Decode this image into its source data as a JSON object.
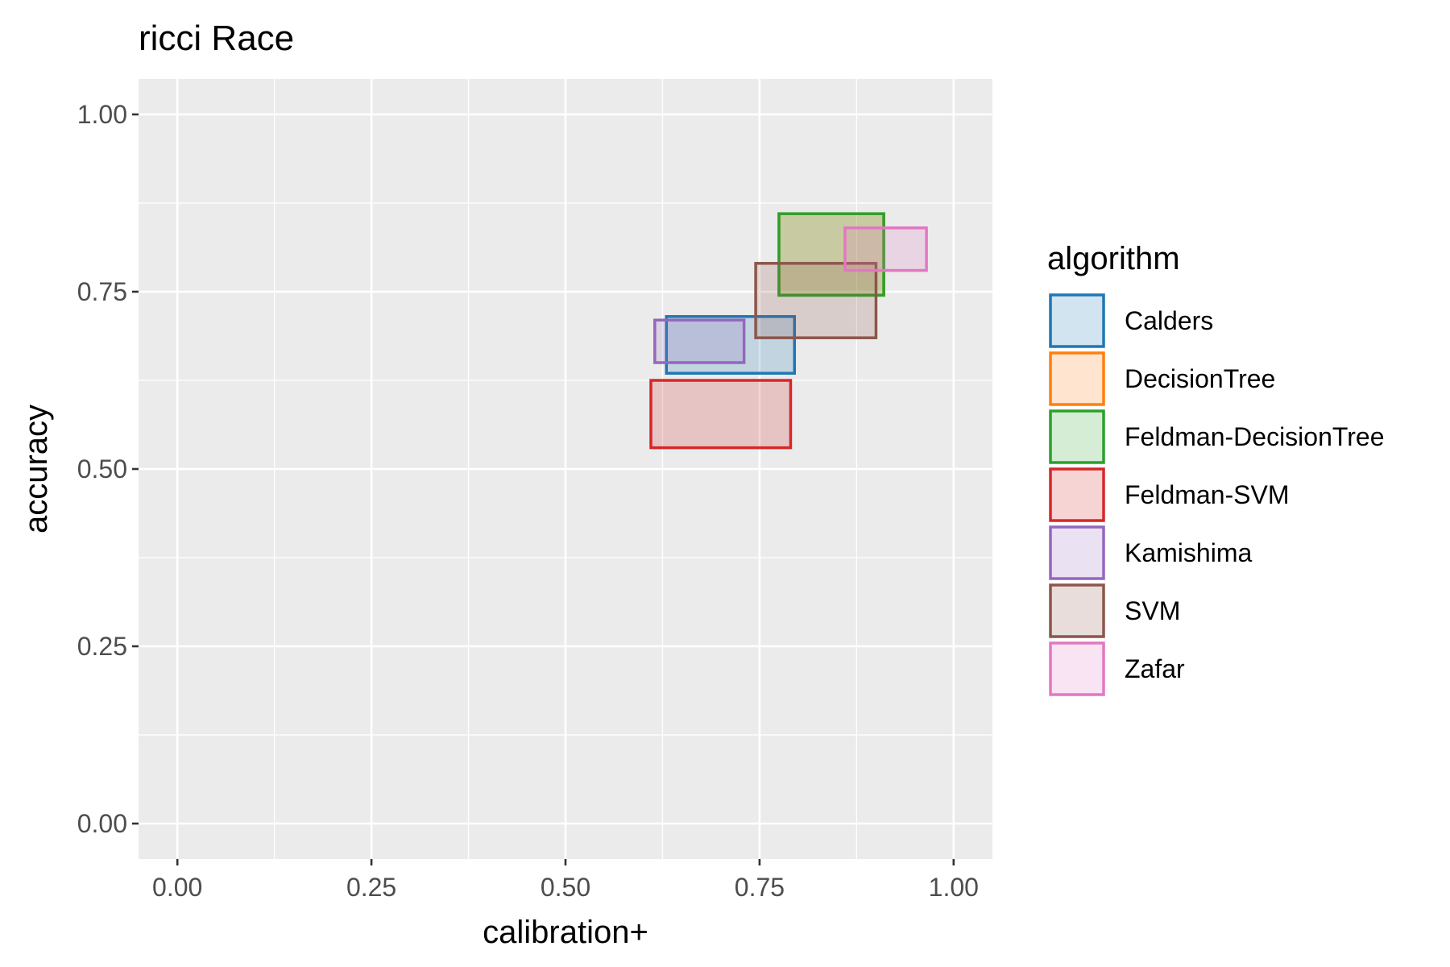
{
  "chart_data": {
    "type": "rect",
    "title": "ricci Race",
    "xlabel": "calibration+",
    "ylabel": "accuracy",
    "xlim": [
      -0.05,
      1.05
    ],
    "ylim": [
      -0.05,
      1.05
    ],
    "x_ticks": [
      0.0,
      0.25,
      0.5,
      0.75,
      1.0
    ],
    "y_ticks": [
      0.0,
      0.25,
      0.5,
      0.75,
      1.0
    ],
    "x_tick_labels": [
      "0.00",
      "0.25",
      "0.50",
      "0.75",
      "1.00"
    ],
    "y_tick_labels": [
      "0.00",
      "0.25",
      "0.50",
      "0.75",
      "1.00"
    ],
    "grid": true,
    "background": "#ebebeb",
    "legend": {
      "title": "algorithm",
      "placement": "right"
    },
    "series": [
      {
        "name": "Calders",
        "color": "#1f77b4",
        "xmin": 0.63,
        "xmax": 0.795,
        "ymin": 0.635,
        "ymax": 0.715
      },
      {
        "name": "DecisionTree",
        "color": "#ff7f0e",
        "xmin": 0.775,
        "xmax": 0.91,
        "ymin": 0.745,
        "ymax": 0.86
      },
      {
        "name": "Feldman-DecisionTree",
        "color": "#2ca02c",
        "xmin": 0.775,
        "xmax": 0.91,
        "ymin": 0.745,
        "ymax": 0.86
      },
      {
        "name": "Feldman-SVM",
        "color": "#d62728",
        "xmin": 0.61,
        "xmax": 0.79,
        "ymin": 0.53,
        "ymax": 0.625
      },
      {
        "name": "Kamishima",
        "color": "#9467bd",
        "xmin": 0.615,
        "xmax": 0.73,
        "ymin": 0.65,
        "ymax": 0.71
      },
      {
        "name": "SVM",
        "color": "#8c564b",
        "xmin": 0.745,
        "xmax": 0.9,
        "ymin": 0.685,
        "ymax": 0.79
      },
      {
        "name": "Zafar",
        "color": "#e377c2",
        "xmin": 0.86,
        "xmax": 0.965,
        "ymin": 0.78,
        "ymax": 0.84
      }
    ]
  }
}
